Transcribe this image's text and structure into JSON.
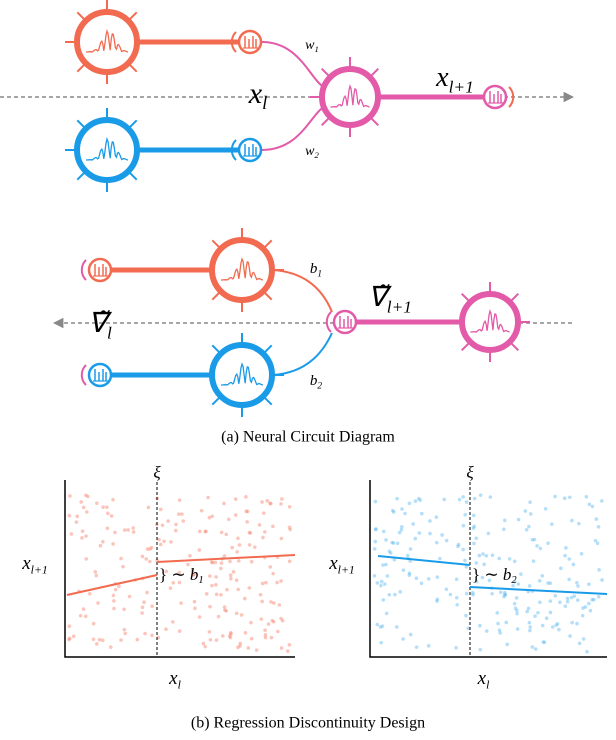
{
  "panel_a": {
    "caption": "(a) Neural Circuit Diagram",
    "forward": {
      "weights": [
        {
          "base": "w",
          "sub": "1"
        },
        {
          "base": "w",
          "sub": "2"
        }
      ],
      "input": {
        "base": "x",
        "sub": "l"
      },
      "output": {
        "base": "x",
        "sub": "l+1"
      }
    },
    "backward": {
      "biases": [
        {
          "base": "b",
          "sub": "1"
        },
        {
          "base": "b",
          "sub": "2"
        }
      ],
      "grad_in": {
        "base": "∇̃",
        "sub": "l+1"
      },
      "grad_out": {
        "base": "∇̃",
        "sub": "l"
      }
    }
  },
  "panel_b": {
    "caption": "(b) Regression Discontinuity Design",
    "plots": [
      {
        "threshold": "ξ",
        "y_label": {
          "base": "x",
          "sub": "l+1"
        },
        "x_label": {
          "base": "x",
          "sub": "l"
        },
        "effect": {
          "prefix": "} ∼ ",
          "base": "b",
          "sub": "1"
        }
      },
      {
        "threshold": "ξ",
        "y_label": {
          "base": "x",
          "sub": "l+1"
        },
        "x_label": {
          "base": "x",
          "sub": "l"
        },
        "effect": {
          "prefix": "} ∼ ",
          "base": "b",
          "sub": "2"
        }
      }
    ]
  }
}
